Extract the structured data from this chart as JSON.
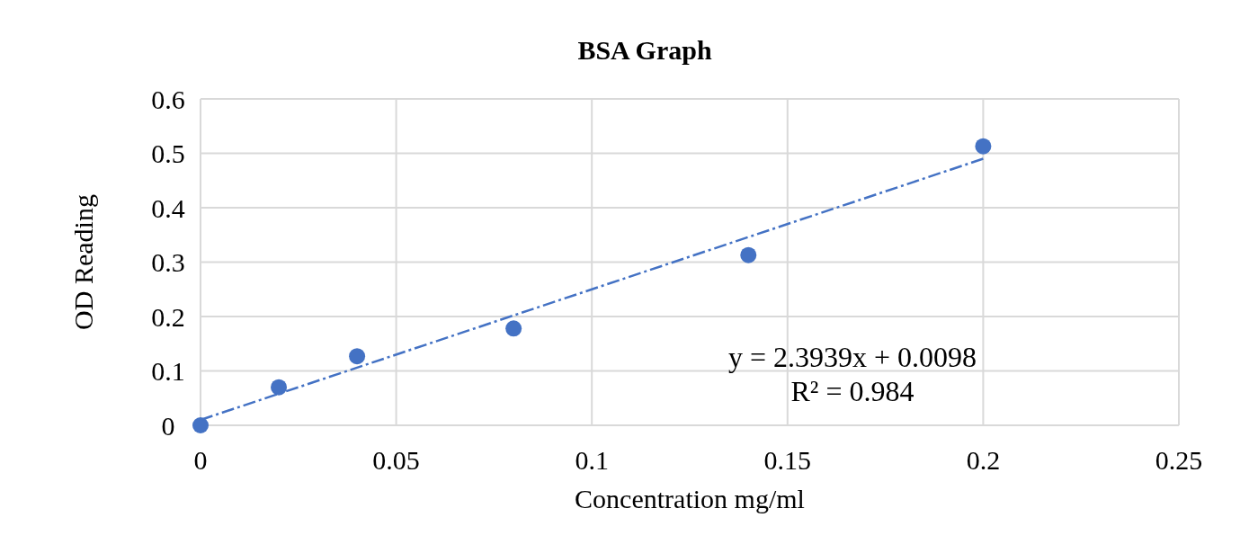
{
  "chart_data": {
    "type": "scatter",
    "title": "BSA Graph",
    "xlabel": "Concentration mg/ml",
    "ylabel": "OD Reading",
    "x": [
      0,
      0.02,
      0.04,
      0.08,
      0.14,
      0.2
    ],
    "series": [
      {
        "color": "#4472c4",
        "marker": "circle",
        "values": [
          0,
          0.07,
          0.127,
          0.178,
          0.313,
          0.513
        ]
      },
      {
        "type": "line",
        "color": "#4472c4",
        "line_style": "dashed",
        "marker": "none",
        "x": [
          0,
          0.2
        ],
        "values": [
          0.01,
          0.49
        ]
      }
    ],
    "xlim": [
      0,
      0.25
    ],
    "xticks": [
      0,
      0.05,
      0.1,
      0.15,
      0.2,
      0.25
    ],
    "ylim": [
      0,
      0.6
    ],
    "yticks": [
      0,
      0.1,
      0.2,
      0.3,
      0.4,
      0.5,
      0.6
    ],
    "grid": true,
    "annotations": [
      "y = 2.3939x + 0.0098",
      "R² = 0.984"
    ]
  }
}
